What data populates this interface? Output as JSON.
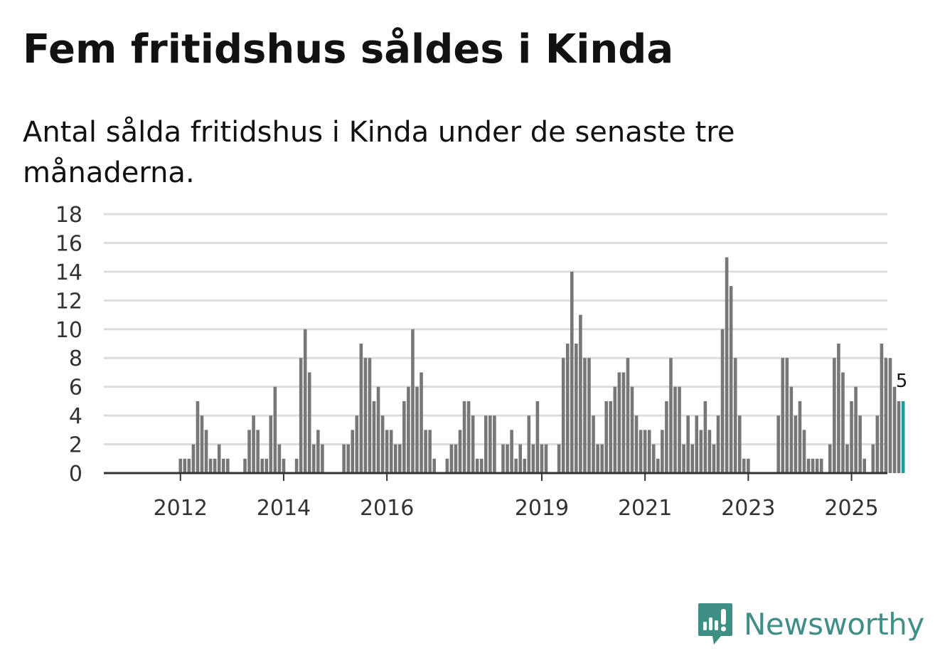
{
  "header": {
    "title": "Fem fritidshus såldes i Kinda",
    "subtitle": "Antal sålda fritidshus i Kinda under de senaste tre månaderna."
  },
  "brand": {
    "name": "Newsworthy",
    "color": "#3f8f87"
  },
  "colors": {
    "bar": "#77777a",
    "highlight": "#1a9d96",
    "grid": "#dddddd",
    "axis": "#333333"
  },
  "chart_data": {
    "type": "bar",
    "title": "Fem fritidshus såldes i Kinda",
    "subtitle": "Antal sålda fritidshus i Kinda under de senaste tre månaderna.",
    "xlabel": "",
    "ylabel": "",
    "ylim": [
      0,
      18
    ],
    "yticks": [
      0,
      2,
      4,
      6,
      8,
      10,
      12,
      14,
      16,
      18
    ],
    "xtick_labels": [
      "2012",
      "2014",
      "2016",
      "2019",
      "2021",
      "2023",
      "2025"
    ],
    "xtick_positions": [
      9,
      33,
      57,
      93,
      117,
      141,
      165
    ],
    "grid": true,
    "highlight_label": "5",
    "values": [
      0,
      0,
      0,
      0,
      0,
      0,
      0,
      0,
      0,
      1,
      1,
      1,
      2,
      5,
      4,
      3,
      1,
      1,
      2,
      1,
      1,
      0,
      0,
      0,
      1,
      3,
      4,
      3,
      1,
      1,
      4,
      6,
      2,
      1,
      0,
      0,
      1,
      8,
      10,
      7,
      2,
      3,
      2,
      0,
      0,
      0,
      0,
      2,
      2,
      3,
      4,
      9,
      8,
      8,
      5,
      6,
      4,
      3,
      3,
      2,
      2,
      5,
      6,
      10,
      6,
      7,
      3,
      3,
      1,
      0,
      0,
      1,
      2,
      2,
      3,
      5,
      5,
      4,
      1,
      1,
      4,
      4,
      4,
      0,
      2,
      2,
      3,
      1,
      2,
      1,
      4,
      2,
      5,
      2,
      2,
      0,
      0,
      2,
      8,
      9,
      14,
      9,
      11,
      8,
      8,
      4,
      2,
      2,
      5,
      5,
      6,
      7,
      7,
      8,
      6,
      4,
      3,
      3,
      3,
      2,
      1,
      3,
      5,
      8,
      6,
      6,
      2,
      4,
      2,
      4,
      3,
      5,
      3,
      2,
      4,
      10,
      15,
      13,
      8,
      4,
      1,
      1,
      0,
      0,
      0,
      0,
      0,
      0,
      4,
      8,
      8,
      6,
      4,
      5,
      3,
      1,
      1,
      1,
      1,
      0,
      2,
      8,
      9,
      7,
      2,
      5,
      6,
      4,
      1,
      0,
      2,
      4,
      9,
      8,
      8,
      6,
      5,
      5
    ]
  }
}
